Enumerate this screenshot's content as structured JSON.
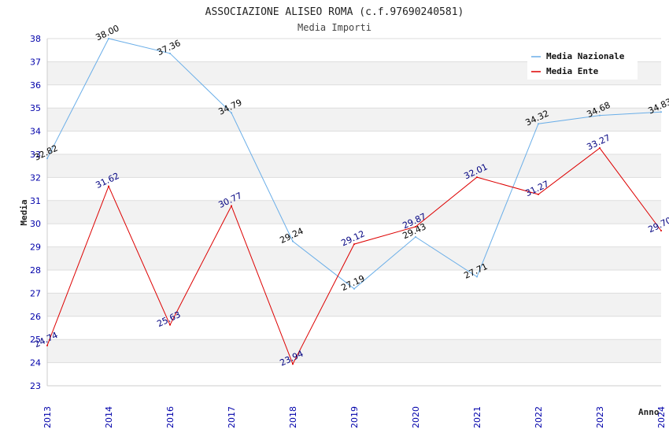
{
  "chart_data": {
    "type": "line",
    "title": "ASSOCIAZIONE ALISEO ROMA (c.f.97690240581)",
    "subtitle": "Media Importi",
    "xlabel": "Anno",
    "ylabel": "Media",
    "categories": [
      "2013",
      "2014",
      "2016",
      "2017",
      "2018",
      "2019",
      "2020",
      "2021",
      "2022",
      "2023",
      "2024"
    ],
    "ylim": [
      23,
      38
    ],
    "yticks": [
      23,
      24,
      25,
      26,
      27,
      28,
      29,
      30,
      31,
      32,
      33,
      34,
      35,
      36,
      37,
      38
    ],
    "grid": true,
    "legend_position": "top-right",
    "series": [
      {
        "name": "Media Nazionale",
        "color": "#6aaee8",
        "label_color": "#000000",
        "values": [
          32.82,
          38.0,
          37.36,
          34.79,
          29.24,
          27.19,
          29.43,
          27.71,
          34.32,
          34.68,
          34.83
        ],
        "labels": [
          "32.82",
          "38.00",
          "37.36",
          "34.79",
          "29.24",
          "27.19",
          "29.43",
          "27.71",
          "34.32",
          "34.68",
          "34.83"
        ]
      },
      {
        "name": "Media Ente",
        "color": "#dd0000",
        "label_color": "#000080",
        "values": [
          24.74,
          31.62,
          25.63,
          30.77,
          23.94,
          29.12,
          29.87,
          32.01,
          31.27,
          33.27,
          29.7
        ],
        "labels": [
          "24.74",
          "31.62",
          "25.63",
          "30.77",
          "23.94",
          "29.12",
          "29.87",
          "32.01",
          "31.27",
          "33.27",
          "29.70"
        ]
      }
    ]
  }
}
